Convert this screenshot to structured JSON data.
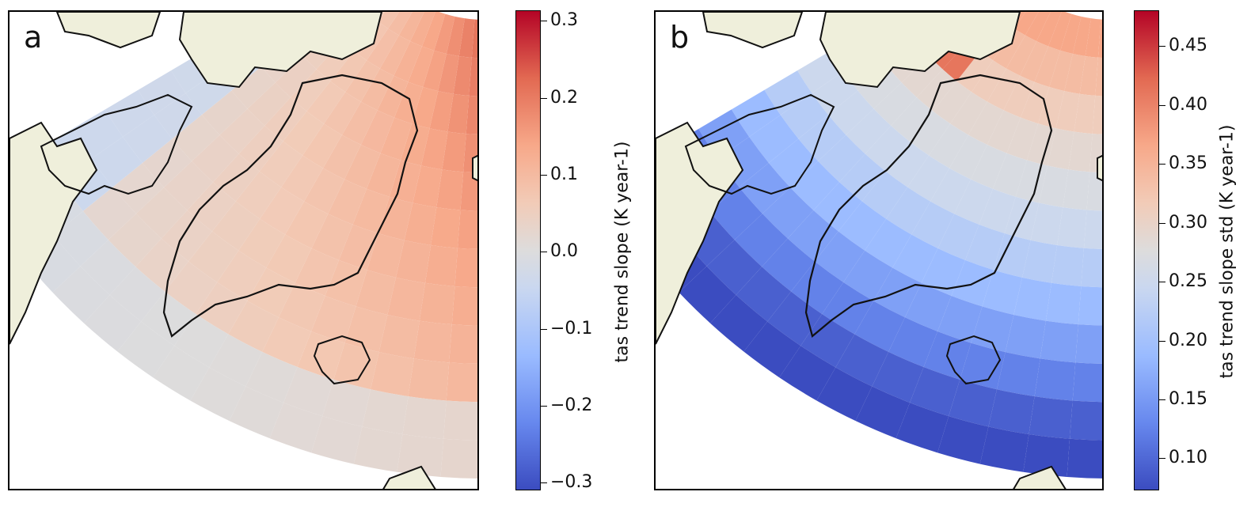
{
  "panels": [
    {
      "id": "a",
      "letter": "a",
      "cbar_label": "tas trend slope (K year-1)",
      "ticks": [
        "0.3",
        "0.2",
        "0.1",
        "0.0",
        "−0.1",
        "−0.2",
        "−0.3"
      ]
    },
    {
      "id": "b",
      "letter": "b",
      "cbar_label": "tas trend slope std (K year-1)",
      "ticks": [
        "0.45",
        "0.40",
        "0.35",
        "0.30",
        "0.25",
        "0.20",
        "0.15",
        "0.10"
      ]
    }
  ],
  "colors": {
    "land": "#efefdb",
    "coast": "#111111",
    "ocean": "#ffffff",
    "cmap": [
      "#3b4cc0",
      "#6788ee",
      "#9abbff",
      "#c9d7f0",
      "#dddcdc",
      "#f2cbb7",
      "#f7a889",
      "#e26952",
      "#b40426"
    ]
  },
  "map_data": {
    "variable_a": "tas trend slope",
    "unit": "K year-1",
    "range_a": [
      -0.31,
      0.31
    ],
    "range_b": [
      0.07,
      0.48
    ],
    "region": "Greenland and surrounding North Atlantic (Baffin Bay, Iceland)"
  }
}
